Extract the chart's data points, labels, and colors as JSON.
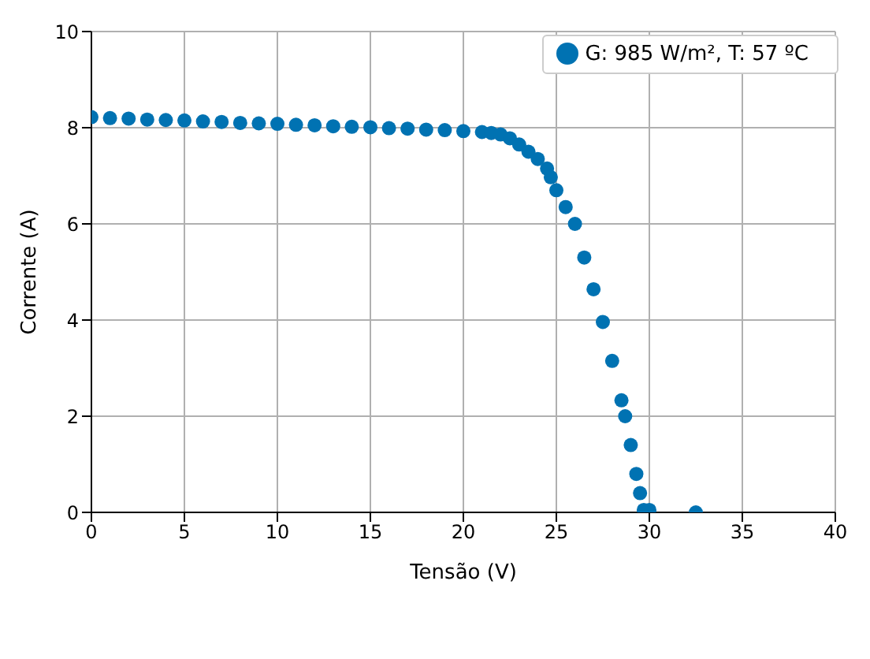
{
  "chart_data": {
    "type": "scatter",
    "xlabel": "Tensão (V)",
    "ylabel": "Corrente (A)",
    "xlim": [
      0,
      40
    ],
    "xticks": [
      0,
      5,
      10,
      15,
      20,
      25,
      30,
      35,
      40
    ],
    "ylim": [
      0,
      10
    ],
    "yticks": [
      0,
      2,
      4,
      6,
      8,
      10
    ],
    "grid": true,
    "legend": "top right",
    "marker": "circle",
    "series": [
      {
        "name": "G: 985 W/m², T: 57 ºC",
        "color": "#0072b2",
        "x": [
          0,
          1,
          2,
          3,
          4,
          5,
          6,
          7,
          8,
          9,
          10,
          11,
          12,
          13,
          14,
          15,
          16,
          17,
          18,
          19,
          20,
          21,
          21.5,
          22,
          22.5,
          23,
          23.5,
          24,
          24.5,
          24.7,
          25,
          25.5,
          26,
          26.5,
          27,
          27.5,
          28,
          28.5,
          28.7,
          29,
          29.3,
          29.5,
          29.7,
          30,
          32.5
        ],
        "values": [
          8.22,
          8.2,
          8.19,
          8.17,
          8.16,
          8.15,
          8.13,
          8.12,
          8.1,
          8.09,
          8.08,
          8.06,
          8.05,
          8.03,
          8.02,
          8.01,
          7.99,
          7.98,
          7.96,
          7.95,
          7.93,
          7.91,
          7.89,
          7.86,
          7.78,
          7.65,
          7.5,
          7.35,
          7.15,
          6.97,
          6.7,
          6.35,
          6.0,
          5.3,
          4.64,
          3.96,
          3.15,
          2.33,
          2.0,
          1.4,
          0.8,
          0.4,
          0.05,
          0.05,
          0
        ]
      }
    ]
  }
}
